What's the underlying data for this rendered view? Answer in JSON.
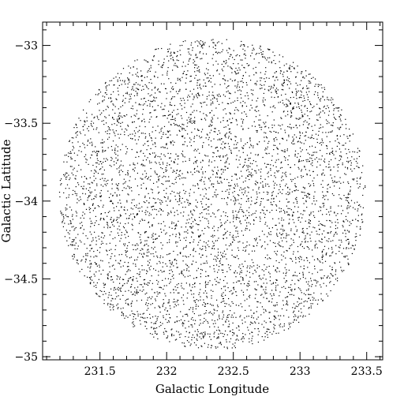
{
  "chart_data": {
    "type": "scatter",
    "title": "",
    "xlabel": "Galactic Longitude",
    "ylabel": "Galactic Latitude",
    "xlim": [
      231.07,
      233.62
    ],
    "ylim": [
      -35.02,
      -32.85
    ],
    "xticks": [
      231.5,
      232,
      232.5,
      233,
      233.5
    ],
    "xtick_labels": [
      "231.5",
      "232",
      "232.5",
      "233",
      "233.5"
    ],
    "yticks": [
      -33,
      -33.5,
      -34,
      -34.5,
      -35
    ],
    "ytick_labels": [
      "−33",
      "−33.5",
      "−34",
      "−34.5",
      "−35"
    ],
    "x_minor_step": 0.1,
    "y_minor_step": 0.1,
    "grid": false,
    "legend": "none",
    "marker_color": "#000000",
    "field": {
      "center": [
        232.34,
        -33.95
      ],
      "radius_deg": [
        1.15,
        1.0
      ]
    },
    "point_count": 5200
  }
}
